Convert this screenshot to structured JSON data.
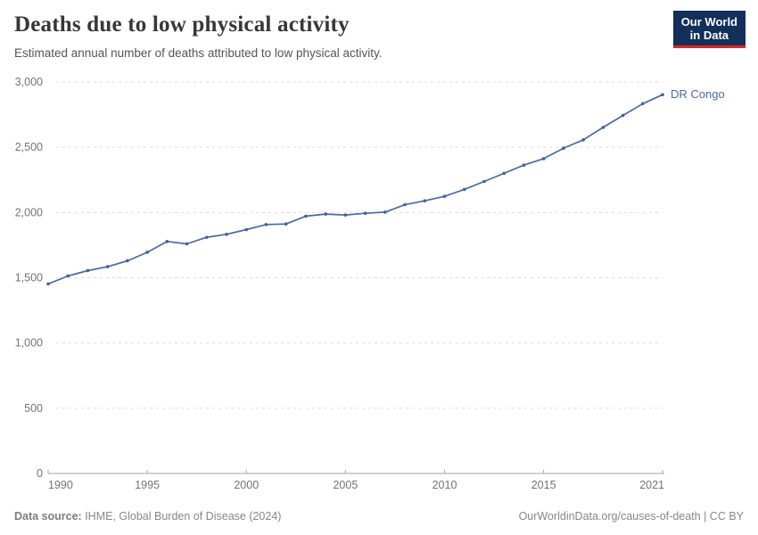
{
  "header": {
    "title": "Deaths due to low physical activity",
    "subtitle": "Estimated annual number of deaths attributed to low physical activity.",
    "logo": {
      "line1": "Our World",
      "line2": "in Data"
    }
  },
  "chart_data": {
    "type": "line",
    "title": "Deaths due to low physical activity",
    "x": [
      1990,
      1991,
      1992,
      1993,
      1994,
      1995,
      1996,
      1997,
      1998,
      1999,
      2000,
      2001,
      2002,
      2003,
      2004,
      2005,
      2006,
      2007,
      2008,
      2009,
      2010,
      2011,
      2012,
      2013,
      2014,
      2015,
      2016,
      2017,
      2018,
      2019,
      2020,
      2021
    ],
    "series": [
      {
        "name": "DR Congo",
        "values": [
          1453,
          1514,
          1555,
          1585,
          1630,
          1695,
          1778,
          1760,
          1810,
          1833,
          1869,
          1908,
          1912,
          1972,
          1988,
          1981,
          1994,
          2003,
          2060,
          2090,
          2124,
          2177,
          2238,
          2300,
          2363,
          2413,
          2493,
          2557,
          2652,
          2744,
          2834,
          2903
        ],
        "color": "#4c6a9c"
      }
    ],
    "xlabel": "",
    "ylabel": "",
    "xlim": [
      1990,
      2021
    ],
    "ylim": [
      0,
      3000
    ],
    "x_ticks": [
      1990,
      1995,
      2000,
      2005,
      2010,
      2015,
      2021
    ],
    "y_ticks": [
      0,
      500,
      1000,
      1500,
      2000,
      2500,
      3000
    ],
    "y_tick_labels": [
      "0",
      "500",
      "1,000",
      "1,500",
      "2,000",
      "2,500",
      "3,000"
    ],
    "grid": "horizontal-dashed",
    "legend_position": "end-of-line-label"
  },
  "footer": {
    "source_label": "Data source:",
    "source_value": " IHME, Global Burden of Disease (2024)",
    "attribution": "OurWorldinData.org/causes-of-death | CC BY"
  },
  "colors": {
    "line": "#4c6a9c",
    "marker": "#40619b",
    "entity_label": "#4c6a9c",
    "grid": "#dcdcdc",
    "axis": "#a5a5a5",
    "tick_label": "#737373",
    "logo_bg": "#12305a",
    "logo_accent": "#dc2727"
  }
}
